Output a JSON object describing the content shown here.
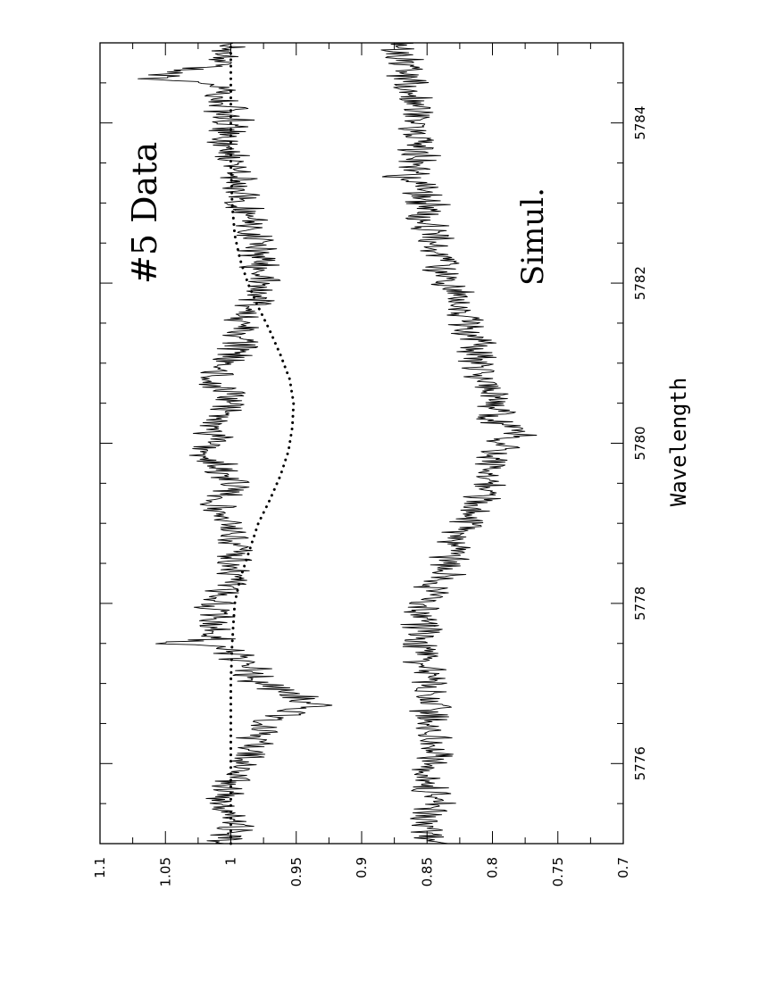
{
  "chart_data": {
    "type": "line",
    "title": "",
    "xlabel": "Wavelength",
    "ylabel": "",
    "xlim": [
      5775,
      5785
    ],
    "ylim": [
      0.7,
      1.1
    ],
    "x_ticks": [
      5776,
      5778,
      5780,
      5782,
      5784
    ],
    "y_ticks": [
      1.1,
      1.05,
      1,
      0.95,
      0.9,
      0.85,
      0.8,
      0.75,
      0.7
    ],
    "grid": false,
    "legend": "none",
    "orientation": "rotated-90",
    "annotations": [
      {
        "text": "#5 Data",
        "x": 5782.7,
        "y": 1.02
      },
      {
        "text": "Simul.",
        "x": 5782.7,
        "y": 0.79
      }
    ],
    "series": [
      {
        "style": "dotted",
        "x": [
          5775.0,
          5775.5,
          5776.0,
          5776.5,
          5777.0,
          5777.5,
          5778.0,
          5778.3,
          5778.6,
          5779.0,
          5779.3,
          5779.6,
          5779.9,
          5780.2,
          5780.5,
          5780.8,
          5781.1,
          5781.4,
          5781.7,
          5782.0,
          5782.3,
          5782.6,
          5783.0,
          5783.5,
          5784.0,
          5784.5,
          5785.0
        ],
        "values": [
          1.0,
          1.0,
          1.0,
          1.0,
          1.0,
          0.999,
          0.997,
          0.993,
          0.987,
          0.979,
          0.97,
          0.962,
          0.956,
          0.953,
          0.952,
          0.955,
          0.962,
          0.97,
          0.979,
          0.987,
          0.993,
          0.997,
          0.999,
          1.0,
          1.0,
          1.0,
          1.0
        ]
      },
      {
        "style": "solid",
        "x": [
          5775.0,
          5775.25,
          5775.5,
          5775.75,
          5776.0,
          5776.25,
          5776.5,
          5776.65,
          5776.75,
          5776.9,
          5777.0,
          5777.25,
          5777.45,
          5777.5,
          5777.55,
          5777.75,
          5778.0,
          5778.25,
          5778.5,
          5778.75,
          5779.0,
          5779.25,
          5779.5,
          5779.75,
          5779.85,
          5780.0,
          5780.25,
          5780.5,
          5780.75,
          5781.0,
          5781.25,
          5781.5,
          5781.75,
          5782.0,
          5782.25,
          5782.5,
          5782.75,
          5783.0,
          5783.25,
          5783.5,
          5783.75,
          5784.0,
          5784.25,
          5784.5,
          5784.55,
          5784.75,
          5785.0
        ],
        "values": [
          1.005,
          0.995,
          1.01,
          0.998,
          0.99,
          0.985,
          0.97,
          0.955,
          0.935,
          0.96,
          0.975,
          0.99,
          1.005,
          1.065,
          1.01,
          1.012,
          1.015,
          1.0,
          1.0,
          0.998,
          1.005,
          1.008,
          1.0,
          1.01,
          1.032,
          1.01,
          1.012,
          1.0,
          1.012,
          1.005,
          0.99,
          0.995,
          0.985,
          0.975,
          0.975,
          0.98,
          0.985,
          0.99,
          0.995,
          1.0,
          1.005,
          1.0,
          1.005,
          1.01,
          1.065,
          1.01,
          1.0
        ]
      },
      {
        "style": "solid",
        "x": [
          5775.0,
          5775.25,
          5775.5,
          5775.75,
          5776.0,
          5776.25,
          5776.5,
          5776.75,
          5777.0,
          5777.25,
          5777.5,
          5777.75,
          5778.0,
          5778.25,
          5778.5,
          5778.75,
          5779.0,
          5779.25,
          5779.5,
          5779.75,
          5780.0,
          5780.1,
          5780.25,
          5780.5,
          5780.75,
          5781.0,
          5781.25,
          5781.5,
          5781.75,
          5782.0,
          5782.25,
          5782.5,
          5782.75,
          5783.0,
          5783.25,
          5783.3,
          5783.5,
          5783.75,
          5784.0,
          5784.25,
          5784.5,
          5784.75,
          5785.0
        ],
        "values": [
          0.84,
          0.85,
          0.845,
          0.85,
          0.845,
          0.845,
          0.848,
          0.848,
          0.85,
          0.85,
          0.855,
          0.852,
          0.85,
          0.84,
          0.835,
          0.83,
          0.82,
          0.81,
          0.805,
          0.8,
          0.795,
          0.775,
          0.795,
          0.8,
          0.805,
          0.81,
          0.81,
          0.82,
          0.825,
          0.835,
          0.84,
          0.845,
          0.85,
          0.85,
          0.855,
          0.87,
          0.855,
          0.855,
          0.86,
          0.862,
          0.865,
          0.868,
          0.87
        ]
      }
    ]
  }
}
